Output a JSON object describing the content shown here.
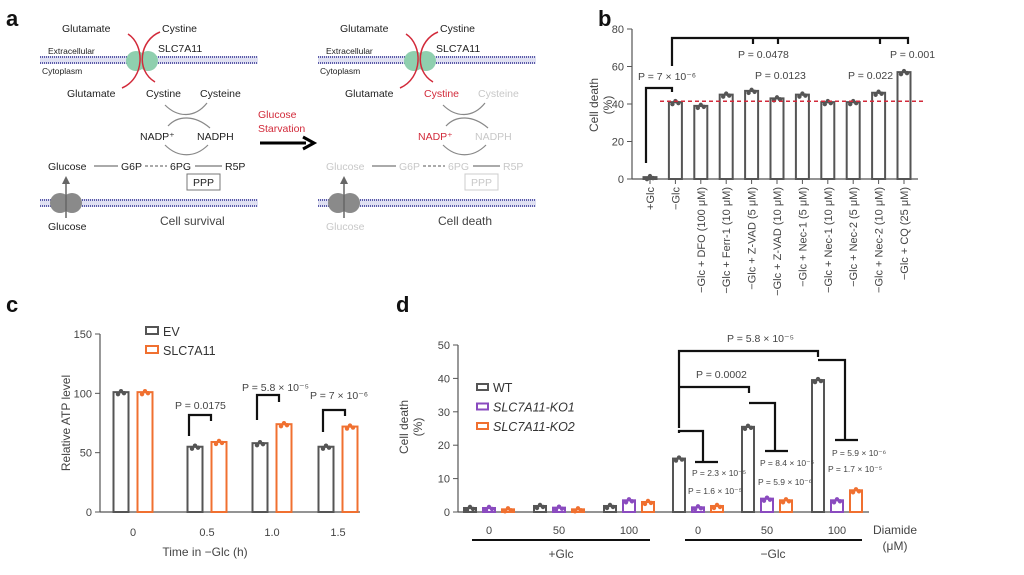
{
  "panel_labels": {
    "a": "a",
    "b": "b",
    "c": "c",
    "d": "d"
  },
  "diagram": {
    "left": {
      "glutamate_out": "Glutamate",
      "cystine_out": "Cystine",
      "transporter": "SLC7A11",
      "extracellular": "Extracellular",
      "cytoplasm": "Cytoplasm",
      "glutamate_in": "Glutamate",
      "cystine_in": "Cystine",
      "cysteine": "Cysteine",
      "nadp": "NADP⁺",
      "nadph": "NADPH",
      "glucose": "Glucose",
      "g6p": "G6P",
      "pg6": "6PG",
      "r5p": "R5P",
      "ppp": "PPP",
      "glucose_out": "Glucose",
      "outcome": "Cell survival"
    },
    "arrow_label": [
      "Glucose",
      "Starvation"
    ],
    "right": {
      "glutamate_out": "Glutamate",
      "cystine_out": "Cystine",
      "transporter": "SLC7A11",
      "extracellular": "Extracellular",
      "cytoplasm": "Cytoplasm",
      "glutamate_in": "Glutamate",
      "cystine_in": "Cystine",
      "cysteine": "Cysteine",
      "nadp": "NADP⁺",
      "nadph": "NADPH",
      "glucose": "Glucose",
      "g6p": "G6P",
      "pg6": "6PG",
      "r5p": "R5P",
      "ppp": "PPP",
      "glucose_out": "Glucose",
      "outcome": "Cell death"
    },
    "colors": {
      "membrane": "#5b5ba8",
      "transporter": "#8fcfae",
      "glucose_transporter": "#8a8a8a",
      "highlight": "#d22a3a",
      "survival": "#2aa86a",
      "faded": "#c8c8c8"
    }
  },
  "chart_data": [
    {
      "panel": "b",
      "type": "bar",
      "ylabel": [
        "Cell death",
        "(%)"
      ],
      "ylim": [
        0,
        80
      ],
      "yticks": [
        0,
        20,
        40,
        60,
        80
      ],
      "categories": [
        "+Glc",
        "−Glc",
        "−Glc + DFO (100 μM)",
        "−Glc + Ferr-1 (10 μM)",
        "−Glc + Z-VAD (5 μM)",
        "−Glc + Z-VAD (10 μM)",
        "−Glc + Nec-1 (5 μM)",
        "−Glc + Nec-1 (10 μM)",
        "−Glc + Nec-2 (5 μM)",
        "−Glc + Nec-2 (10 μM)",
        "−Glc + CQ (25 μM)"
      ],
      "values": [
        1,
        41,
        39,
        45,
        47,
        43,
        45,
        41,
        41,
        46,
        57
      ],
      "reference_line": {
        "value": 41.5,
        "style": "dashed",
        "color": "#d22a3a"
      },
      "bar_color": "#555555",
      "annotations": [
        "P = 7 × 10⁻⁶",
        "P = 0.0478",
        "P = 0.0123",
        "P = 0.022",
        "P = 0.001"
      ]
    },
    {
      "panel": "c",
      "type": "bar",
      "ylabel": "Relative ATP level",
      "xlabel": "Time in −Glc (h)",
      "ylim": [
        0,
        150
      ],
      "yticks": [
        0,
        50,
        100,
        150
      ],
      "categories": [
        "0",
        "0.5",
        "1.0",
        "1.5"
      ],
      "series": [
        {
          "name": "EV",
          "values": [
            101,
            55,
            58,
            55
          ],
          "color": "#555555"
        },
        {
          "name": "SLC7A11",
          "values": [
            101,
            59,
            74,
            72
          ],
          "color": "#f07030"
        }
      ],
      "legend": "top-left",
      "annotations": [
        "P = 0.0175",
        "P = 5.8 × 10⁻⁵",
        "P = 7 × 10⁻⁶"
      ]
    },
    {
      "panel": "d",
      "type": "bar",
      "ylabel": [
        "Cell death",
        "(%)"
      ],
      "ylim": [
        0,
        50
      ],
      "yticks": [
        0,
        10,
        20,
        30,
        40,
        50
      ],
      "categories": [
        "0",
        "50",
        "100",
        "0",
        "50",
        "100"
      ],
      "x_unit_label": [
        "Diamide",
        "(μM)"
      ],
      "groups": [
        {
          "label": "+Glc"
        },
        {
          "label": "−Glc"
        }
      ],
      "series": [
        {
          "name": "WT",
          "values": [
            1.2,
            1.8,
            1.8,
            16,
            25.5,
            39.5
          ],
          "color": "#555555"
        },
        {
          "name": "SLC7A11-KO1",
          "values": [
            1.2,
            1.3,
            3.5,
            1.4,
            4,
            3.5
          ],
          "color": "#8a4bbf"
        },
        {
          "name": "SLC7A11-KO2",
          "values": [
            0.8,
            0.8,
            3,
            1.8,
            3.5,
            6.5
          ],
          "color": "#f07030"
        }
      ],
      "legend": "left",
      "annotations": [
        "P = 5.8 × 10⁻⁵",
        "P = 0.0002",
        "P = 2.3 × 10⁻⁵",
        "P = 1.6 × 10⁻⁵",
        "P = 8.4 × 10⁻⁵",
        "P = 5.9 × 10⁻⁶",
        "P = 5.9 × 10⁻⁶",
        "P = 1.7 × 10⁻⁵"
      ]
    }
  ]
}
